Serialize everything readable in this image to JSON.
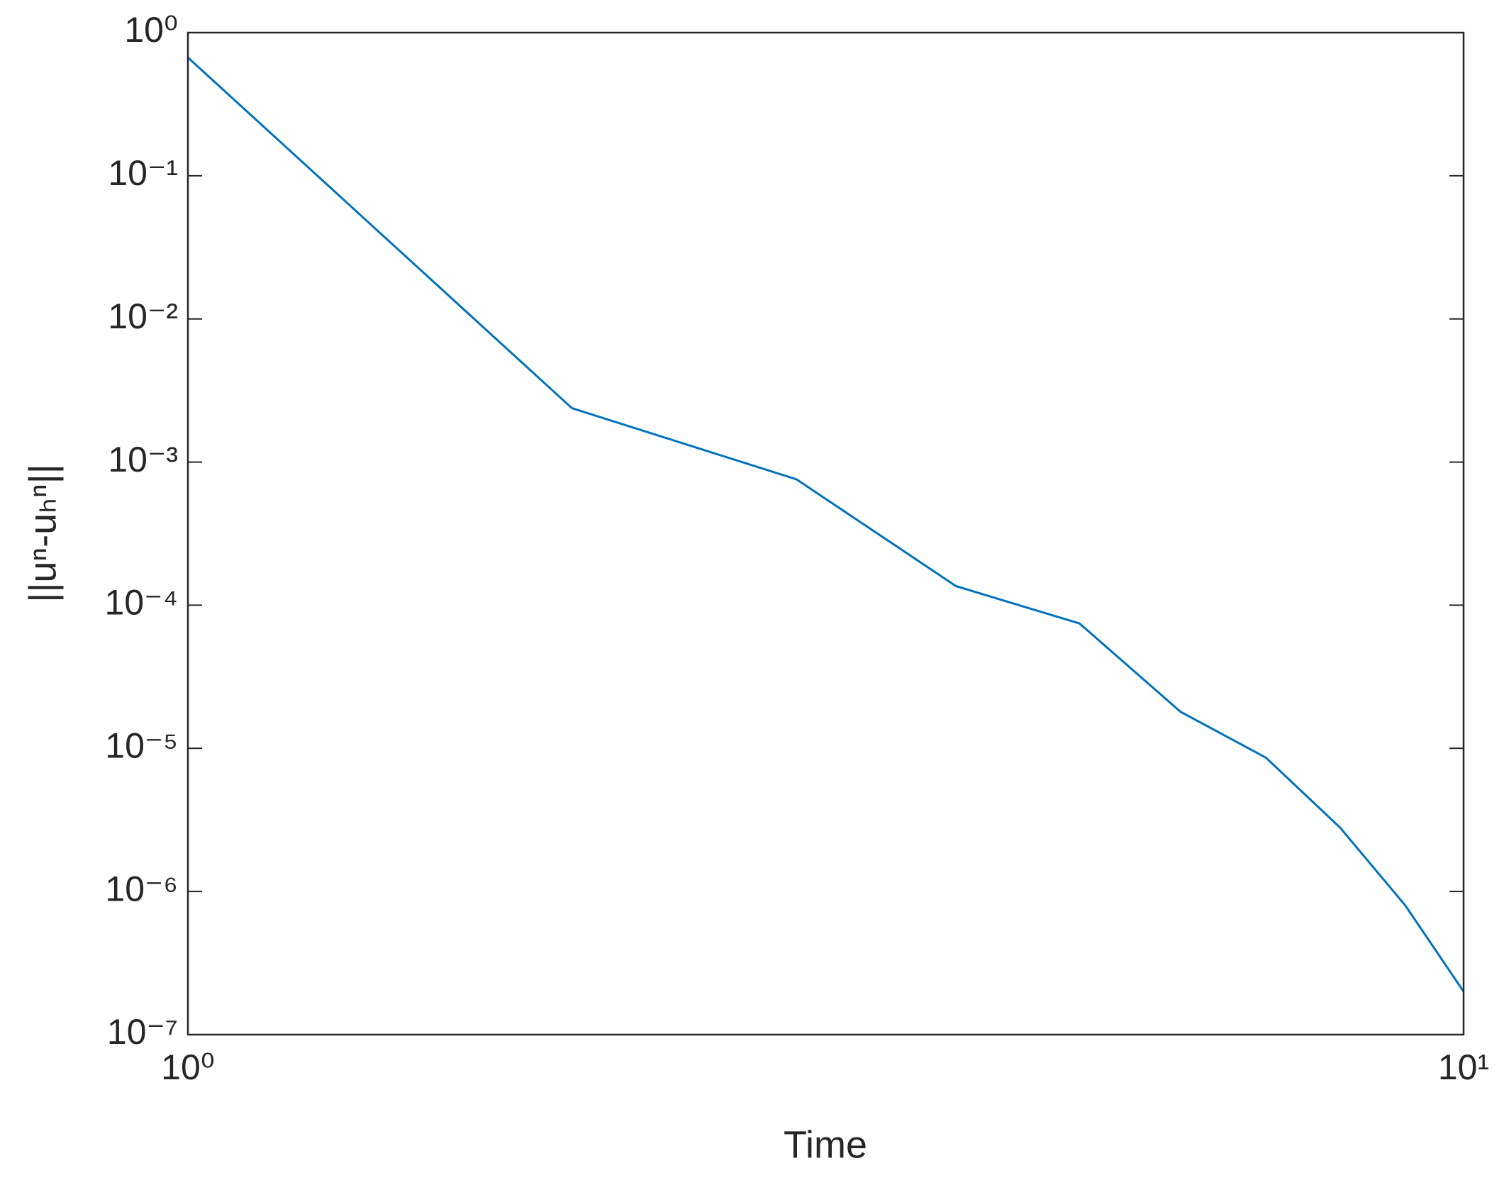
{
  "chart_data": {
    "type": "line",
    "xlabel": "Time",
    "ylabel": "||uⁿ-uₕⁿ||",
    "x": [
      1,
      2,
      3,
      4,
      5,
      6,
      7,
      8,
      9,
      10
    ],
    "series": [
      {
        "color": "#0072bd",
        "values": [
          0.67,
          0.00238,
          0.000757,
          0.000136,
          7.45e-05,
          1.8e-05,
          8.6e-06,
          2.8e-06,
          8e-07,
          2e-07
        ]
      }
    ],
    "log_x": true,
    "log_y": true,
    "xlim": [
      1,
      10
    ],
    "xticks": [
      {
        "value": 1,
        "label": "10⁰"
      },
      {
        "value": 10,
        "label": "10¹"
      }
    ],
    "ylim": [
      1e-07,
      1
    ],
    "yticks": [
      {
        "value": 1e-07,
        "label": "10⁻⁷"
      },
      {
        "value": 1e-06,
        "label": "10⁻⁶"
      },
      {
        "value": 1e-05,
        "label": "10⁻⁵"
      },
      {
        "value": 0.0001,
        "label": "10⁻⁴"
      },
      {
        "value": 0.001,
        "label": "10⁻³"
      },
      {
        "value": 0.01,
        "label": "10⁻²"
      },
      {
        "value": 0.1,
        "label": "10⁻¹"
      },
      {
        "value": 1,
        "label": "10⁰"
      }
    ],
    "grid": false
  }
}
